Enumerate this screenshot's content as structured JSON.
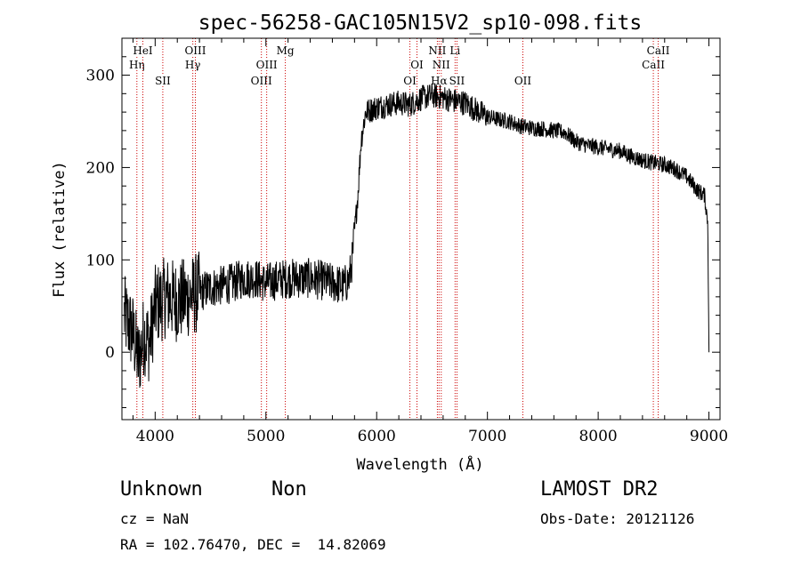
{
  "chart_data": {
    "type": "line",
    "title": "spec-56258-GAC105N15V2_sp10-098.fits",
    "xlabel": "Wavelength (Å)",
    "ylabel": "Flux (relative)",
    "xlim": [
      3700,
      9100
    ],
    "ylim": [
      -73,
      340
    ],
    "x_ticks": [
      4000,
      5000,
      6000,
      7000,
      8000,
      9000
    ],
    "y_ticks": [
      0,
      100,
      200,
      300
    ],
    "grid": false,
    "line_color": "#000000",
    "marker_color": "#cc0000",
    "anchors": [
      [
        3720,
        40
      ],
      [
        3800,
        20
      ],
      [
        3850,
        -10
      ],
      [
        3900,
        20
      ],
      [
        3950,
        10
      ],
      [
        4000,
        50
      ],
      [
        4100,
        60
      ],
      [
        4200,
        55
      ],
      [
        4300,
        60
      ],
      [
        4400,
        65
      ],
      [
        4500,
        70
      ],
      [
        4600,
        72
      ],
      [
        4700,
        75
      ],
      [
        4800,
        80
      ],
      [
        4900,
        80
      ],
      [
        5000,
        75
      ],
      [
        5100,
        78
      ],
      [
        5200,
        80
      ],
      [
        5300,
        80
      ],
      [
        5400,
        80
      ],
      [
        5500,
        78
      ],
      [
        5600,
        75
      ],
      [
        5700,
        72
      ],
      [
        5750,
        78
      ],
      [
        5780,
        100
      ],
      [
        5800,
        130
      ],
      [
        5830,
        170
      ],
      [
        5860,
        230
      ],
      [
        5900,
        260
      ],
      [
        6000,
        265
      ],
      [
        6100,
        268
      ],
      [
        6200,
        270
      ],
      [
        6300,
        268
      ],
      [
        6400,
        275
      ],
      [
        6500,
        278
      ],
      [
        6600,
        276
      ],
      [
        6700,
        272
      ],
      [
        6800,
        270
      ],
      [
        6900,
        262
      ],
      [
        7000,
        255
      ],
      [
        7100,
        252
      ],
      [
        7200,
        250
      ],
      [
        7300,
        245
      ],
      [
        7400,
        243
      ],
      [
        7500,
        242
      ],
      [
        7600,
        240
      ],
      [
        7700,
        238
      ],
      [
        7800,
        228
      ],
      [
        7900,
        224
      ],
      [
        8000,
        222
      ],
      [
        8100,
        220
      ],
      [
        8200,
        218
      ],
      [
        8300,
        212
      ],
      [
        8400,
        208
      ],
      [
        8500,
        205
      ],
      [
        8600,
        203
      ],
      [
        8700,
        198
      ],
      [
        8800,
        190
      ],
      [
        8900,
        175
      ],
      [
        8960,
        170
      ],
      [
        8990,
        140
      ],
      [
        9000,
        0
      ]
    ],
    "lines": [
      {
        "label": "Hη",
        "x": 3835,
        "row": 1
      },
      {
        "label": "HeI",
        "x": 3889,
        "row": 0
      },
      {
        "label": "SII",
        "x": 4069,
        "row": 2
      },
      {
        "label": "Hγ",
        "x": 4340,
        "row": 1
      },
      {
        "label": "OIII",
        "x": 4363,
        "row": 0
      },
      {
        "label": "OIII",
        "x": 4959,
        "row": 2
      },
      {
        "label": "OIII",
        "x": 5007,
        "row": 1
      },
      {
        "label": "Mg",
        "x": 5175,
        "row": 0
      },
      {
        "label": "OI",
        "x": 6300,
        "row": 2
      },
      {
        "label": "OI",
        "x": 6364,
        "row": 1
      },
      {
        "label": "NII",
        "x": 6548,
        "row": 0
      },
      {
        "label": "NII",
        "x": 6583,
        "row": 1
      },
      {
        "label": "Hα",
        "x": 6563,
        "row": 2
      },
      {
        "label": "Li",
        "x": 6708,
        "row": 0
      },
      {
        "label": "SII",
        "x": 6725,
        "row": 2
      },
      {
        "label": "OII",
        "x": 7320,
        "row": 2
      },
      {
        "label": "CaII",
        "x": 8498,
        "row": 1
      },
      {
        "label": "CaII",
        "x": 8542,
        "row": 0
      }
    ]
  },
  "info": {
    "class_name": "Unknown",
    "subclass": "Non",
    "survey": "LAMOST DR2",
    "cz": "cz = NaN",
    "obs_date": "Obs-Date: 20121126",
    "coords": "RA = 102.76470, DEC =  14.82069"
  }
}
